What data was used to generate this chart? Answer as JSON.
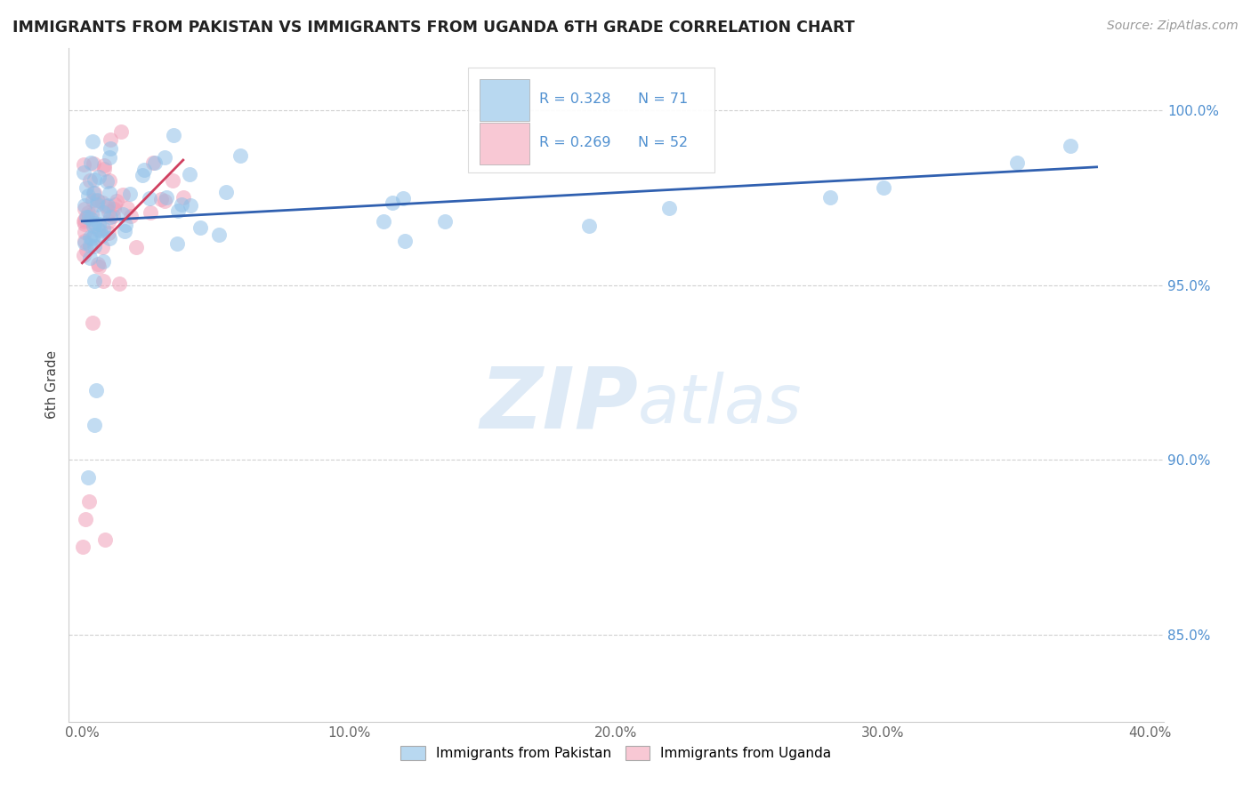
{
  "title": "IMMIGRANTS FROM PAKISTAN VS IMMIGRANTS FROM UGANDA 6TH GRADE CORRELATION CHART",
  "source": "Source: ZipAtlas.com",
  "ylabel": "6th Grade",
  "xlim": [
    -0.005,
    0.405
  ],
  "ylim": [
    0.825,
    1.018
  ],
  "x_ticks": [
    0.0,
    0.1,
    0.2,
    0.3,
    0.4
  ],
  "x_tick_labels": [
    "0.0%",
    "10.0%",
    "20.0%",
    "30.0%",
    "40.0%"
  ],
  "y_ticks": [
    0.85,
    0.9,
    0.95,
    1.0
  ],
  "y_tick_labels": [
    "85.0%",
    "90.0%",
    "95.0%",
    "100.0%"
  ],
  "R_pakistan": 0.328,
  "N_pakistan": 71,
  "R_uganda": 0.269,
  "N_uganda": 52,
  "pakistan_color": "#90C0E8",
  "uganda_color": "#F0A0B8",
  "pakistan_line_color": "#3060B0",
  "uganda_line_color": "#D04060",
  "legend_color_pakistan": "#B8D8F0",
  "legend_color_uganda": "#F8C8D4",
  "watermark_zip": "ZIP",
  "watermark_atlas": "atlas",
  "background_color": "#ffffff",
  "grid_color": "#d0d0d0",
  "title_color": "#222222",
  "source_color": "#999999",
  "ylabel_color": "#444444",
  "ytick_color": "#5090D0",
  "xtick_color": "#666666"
}
